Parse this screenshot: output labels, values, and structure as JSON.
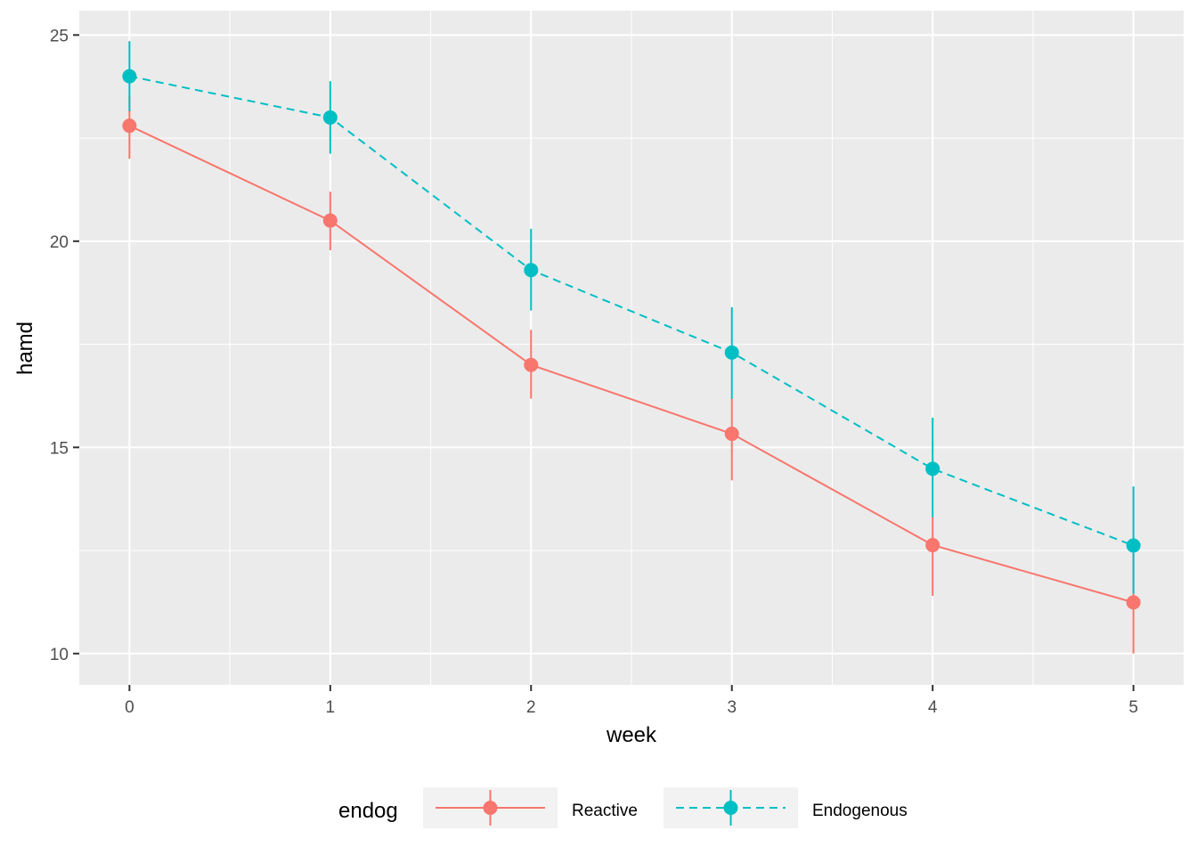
{
  "chart_data": {
    "type": "line",
    "xlabel": "week",
    "ylabel": "hamd",
    "x": [
      0,
      1,
      2,
      3,
      4,
      5
    ],
    "xticks": [
      "0",
      "1",
      "2",
      "3",
      "4",
      "5"
    ],
    "xlim": [
      -0.25,
      5.25
    ],
    "yticks": [
      "10",
      "15",
      "20",
      "25"
    ],
    "ylim": [
      9.24,
      25.59
    ],
    "grid": true,
    "legend": {
      "title": "endog",
      "position": "bottom"
    },
    "series": [
      {
        "name": "Reactive",
        "color": "#F8766D",
        "linestyle": "solid",
        "mean": [
          22.8,
          20.5,
          17.0,
          15.33,
          12.63,
          11.24
        ],
        "lower": [
          22.0,
          19.78,
          16.18,
          14.2,
          11.4,
          10.0
        ],
        "upper": [
          23.5,
          21.2,
          17.85,
          16.2,
          13.3,
          12.42
        ]
      },
      {
        "name": "Endogenous",
        "color": "#00BFC4",
        "linestyle": "dashed",
        "mean": [
          24.0,
          23.0,
          19.3,
          17.3,
          14.48,
          12.62
        ],
        "lower": [
          23.15,
          22.12,
          18.32,
          16.18,
          13.3,
          11.45
        ],
        "upper": [
          24.85,
          23.88,
          20.3,
          18.4,
          15.72,
          14.05
        ]
      }
    ]
  }
}
